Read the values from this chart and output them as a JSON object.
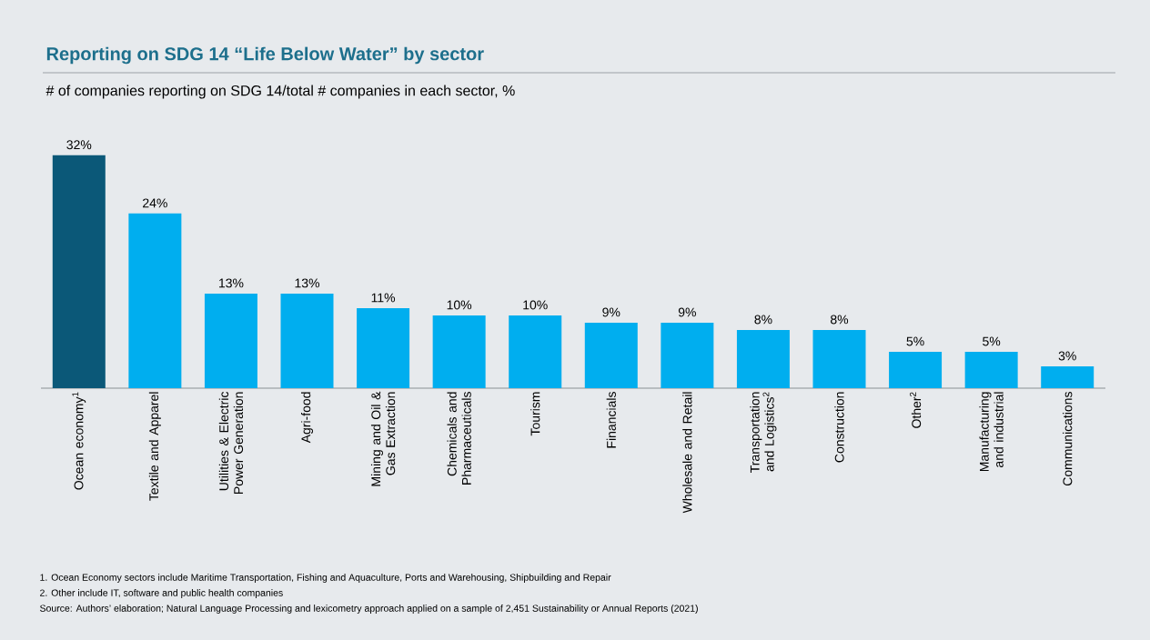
{
  "chart_data": {
    "type": "bar",
    "title": "Reporting on SDG 14 “Life Below Water” by sector",
    "subtitle": "# of companies reporting on SDG 14/total # companies in each sector, %",
    "categories": [
      "Ocean economy$^{1}$",
      "Textile and Apparel",
      "Utilities & Electric Power Generation",
      "Agri-food",
      "Mining and Oil & Gas Extraction",
      "Chemicals and Pharmaceuticals",
      "Tourism",
      "Financials",
      "Wholesale and Retail",
      "Transportation and Logistics$^{2}$",
      "Construction",
      "Other$^{2}$",
      "Manufacturing and industrial",
      "Communications"
    ],
    "values": [
      32,
      24,
      13,
      13,
      11,
      10,
      10,
      9,
      9,
      8,
      8,
      5,
      5,
      3
    ],
    "value_labels": [
      "32%",
      "24%",
      "13%",
      "13%",
      "11%",
      "10%",
      "10%",
      "9%",
      "9%",
      "8%",
      "8%",
      "5%",
      "5%",
      "3%"
    ],
    "colors": [
      "#0b5878",
      "#00aeef",
      "#00aeef",
      "#00aeef",
      "#00aeef",
      "#00aeef",
      "#00aeef",
      "#00aeef",
      "#00aeef",
      "#00aeef",
      "#00aeef",
      "#00aeef",
      "#00aeef",
      "#00aeef"
    ],
    "annotations": [
      "1. Ocean Economy sectors include Maritime Transportation, Fishing and Aquaculture, Ports and Warehousing, Shipbuilding and Repair",
      "2. Other include IT, software and public health companies",
      "Source: Authors’ elaboration; Natural Language Processing and lexicometry approach applied on a sample of 2,451 Sustainability or Annual Reports (2021)"
    ]
  }
}
